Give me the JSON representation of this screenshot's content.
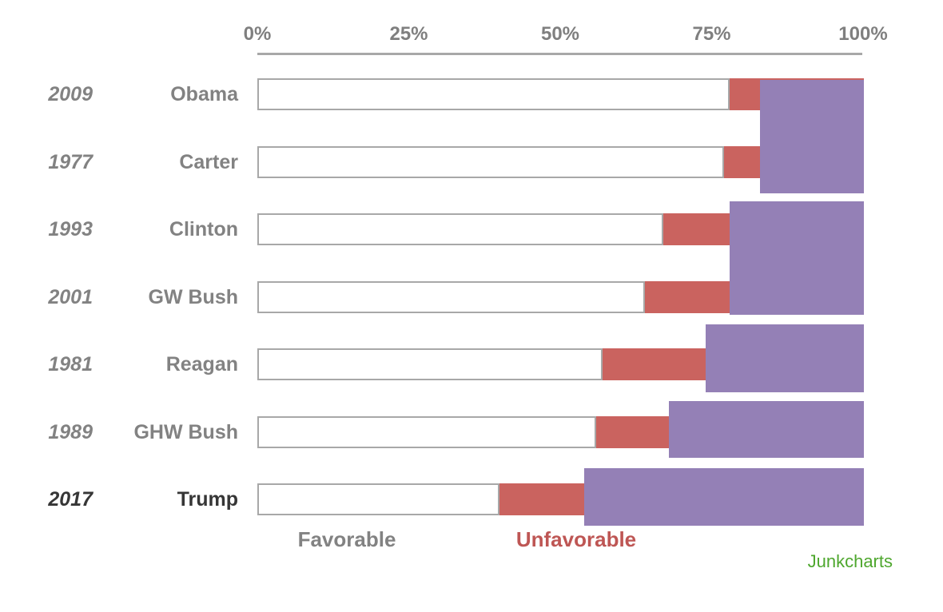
{
  "credit": "Junkcharts",
  "chart_data": {
    "type": "bar",
    "orientation": "horizontal",
    "title": "",
    "x_axis": {
      "tick_labels": [
        "0%",
        "25%",
        "50%",
        "75%",
        "100%"
      ],
      "tick_values": [
        0,
        25,
        50,
        75,
        100
      ],
      "range": [
        0,
        100
      ],
      "grid": false
    },
    "legend": {
      "favorable": "Favorable",
      "unfavorable": "Unfavorable",
      "position": "bottom"
    },
    "rows": [
      {
        "year": "2009",
        "name": "Obama",
        "favorable": 78,
        "unfavorable": 5,
        "no_opinion": 17,
        "emphasis": false
      },
      {
        "year": "1977",
        "name": "Carter",
        "favorable": 77,
        "unfavorable": 6,
        "no_opinion": 17,
        "emphasis": false
      },
      {
        "year": "1993",
        "name": "Clinton",
        "favorable": 67,
        "unfavorable": 11,
        "no_opinion": 22,
        "emphasis": false
      },
      {
        "year": "2001",
        "name": "GW Bush",
        "favorable": 64,
        "unfavorable": 14,
        "no_opinion": 22,
        "emphasis": false
      },
      {
        "year": "1981",
        "name": "Reagan",
        "favorable": 57,
        "unfavorable": 17,
        "no_opinion": 26,
        "emphasis": false
      },
      {
        "year": "1989",
        "name": "GHW Bush",
        "favorable": 56,
        "unfavorable": 12,
        "no_opinion": 32,
        "emphasis": false
      },
      {
        "year": "2017",
        "name": "Trump",
        "favorable": 40,
        "unfavorable": 14,
        "no_opinion": 46,
        "emphasis": true
      }
    ],
    "purple_blocks": [
      {
        "rows": [
          0,
          1
        ],
        "start_pct": 83
      },
      {
        "rows": [
          2,
          3
        ],
        "start_pct": 78
      },
      {
        "rows": [
          4
        ],
        "start_pct": 74
      },
      {
        "rows": [
          5
        ],
        "start_pct": 68
      },
      {
        "rows": [
          6
        ],
        "start_pct": 54
      }
    ],
    "colors": {
      "favorable_fill": "#FFFFFF",
      "unfavorable_fill": "#CA635F",
      "no_opinion_fill": "#9480B6",
      "bar_border": "#A8A8A8",
      "axis_line": "#A8A8A8",
      "tick_text": "#7F7F7F",
      "label_gray": "#828282",
      "emphasis_dark": "#363636",
      "unfavorable_text": "#BE5654",
      "credit_green": "#4EA72E"
    }
  }
}
